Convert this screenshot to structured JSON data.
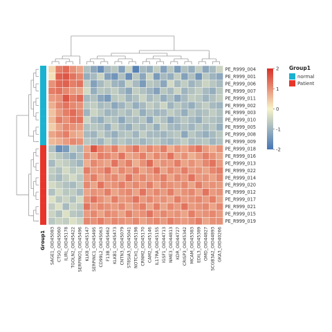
{
  "chart_data": {
    "type": "heatmap",
    "rows": [
      "PE_R999_004",
      "PE_R999_001",
      "PE_R999_006",
      "PE_R999_007",
      "PE_R999_011",
      "PE_R999_002",
      "PE_R999_003",
      "PE_R999_010",
      "PE_R999_005",
      "PE_R999_008",
      "PE_R999_009",
      "PE_R999_018",
      "PE_R999_016",
      "PE_R999_013",
      "PE_R999_022",
      "PE_R999_014",
      "PE_R999_020",
      "PE_R999_012",
      "PE_R999_017",
      "PE_R999_021",
      "PE_R999_015",
      "PE_R999_019"
    ],
    "columns": [
      "SAGE1_OID45083",
      "CTSO_OID45060",
      "ILIRL_OID45178",
      "TGOLN2_OID45422",
      "SERPINO1_OID45496",
      "KLK8_OID45147",
      "SERPINC1_OID45495",
      "CD99L2_OID45063",
      "F13B_OID45462",
      "KLKB1_OID45473",
      "CNTN3_OID45079",
      "ST8SIA3_OID45041",
      "NOTCH1_OID45198",
      "CRNM2_OID45170",
      "CAM2_OID45146",
      "IL17RA_OID45155",
      "IGSF1_OID44713",
      "NME3_OID44813",
      "KDR_OID44727",
      "CRISP3_OID45342",
      "MCAM_OID45383",
      "EDIL3_OID45389",
      "OMD_OID44827",
      "SCGB3A2_OID44893",
      "GKA3_OID40266"
    ],
    "groups": [
      "normal",
      "normal",
      "normal",
      "normal",
      "normal",
      "normal",
      "normal",
      "normal",
      "normal",
      "normal",
      "normal",
      "Patient",
      "Patient",
      "Patient",
      "Patient",
      "Patient",
      "Patient",
      "Patient",
      "Patient",
      "Patient",
      "Patient",
      "Patient"
    ],
    "values": [
      [
        0.3,
        1.2,
        1.4,
        1.0,
        0.8,
        -0.8,
        -1.2,
        -1.6,
        -0.9,
        -0.7,
        -1.3,
        -0.5,
        -1.8,
        -0.9,
        -1.1,
        -0.6,
        -1.3,
        -0.7,
        -1.4,
        -0.8,
        -1.1,
        -0.6,
        -1.2,
        -0.9,
        -0.5
      ],
      [
        0.2,
        1.5,
        1.6,
        1.3,
        1.1,
        -1.1,
        -0.9,
        -0.5,
        -1.3,
        -1.5,
        -0.8,
        -1.6,
        -0.7,
        -1.2,
        -0.5,
        -1.4,
        -0.9,
        -1.1,
        -0.6,
        -1.3,
        -0.8,
        -1.5,
        -0.7,
        -1.0,
        -1.2
      ],
      [
        1.0,
        1.4,
        1.5,
        1.2,
        1.3,
        -0.6,
        -1.3,
        -0.9,
        -0.6,
        -1.0,
        -1.1,
        -0.5,
        -0.9,
        -1.4,
        -0.7,
        -0.8,
        -1.2,
        -0.4,
        -0.9,
        -0.6,
        -1.0,
        -0.8,
        -0.5,
        -0.7,
        -0.9
      ],
      [
        1.2,
        1.3,
        1.1,
        0.9,
        0.8,
        -0.4,
        -1.1,
        -0.7,
        -0.8,
        -0.6,
        -0.9,
        -1.2,
        -0.6,
        -0.8,
        -1.0,
        -1.3,
        -0.7,
        -0.9,
        -0.5,
        -1.0,
        -0.8,
        -0.6,
        -0.9,
        -1.1,
        -0.7
      ],
      [
        0.9,
        1.0,
        1.6,
        1.2,
        1.4,
        -0.9,
        -0.8,
        -1.2,
        -1.4,
        -0.7,
        -0.6,
        -1.0,
        -0.8,
        -0.5,
        -0.9,
        -0.7,
        -1.1,
        -0.8,
        -1.2,
        -0.9,
        -0.6,
        -0.7,
        -1.0,
        -0.8,
        -0.6
      ],
      [
        0.7,
        1.1,
        1.3,
        1.1,
        1.0,
        -0.7,
        -0.6,
        -0.9,
        -0.8,
        -1.2,
        -1.0,
        -0.7,
        -1.1,
        -0.9,
        -0.6,
        -0.8,
        -0.5,
        -1.0,
        -0.7,
        -0.9,
        -1.1,
        -0.8,
        -0.6,
        -0.9,
        -1.0
      ],
      [
        0.5,
        0.9,
        1.2,
        1.4,
        1.1,
        -1.0,
        -0.5,
        -0.7,
        -1.0,
        -0.9,
        -0.7,
        -0.9,
        -0.6,
        -1.1,
        -0.8,
        -1.0,
        -0.9,
        -0.6,
        -0.8,
        -1.1,
        -0.7,
        -0.9,
        -0.8,
        -0.6,
        -0.8
      ],
      [
        0.6,
        1.2,
        1.0,
        1.3,
        1.3,
        -0.5,
        -0.9,
        -1.1,
        -0.7,
        -0.8,
        -1.2,
        -0.8,
        -0.9,
        -0.7,
        -1.2,
        -0.6,
        -0.8,
        -1.2,
        -0.9,
        -0.7,
        -0.9,
        -1.1,
        -0.7,
        -0.8,
        -0.9
      ],
      [
        0.4,
        0.8,
        1.1,
        1.0,
        0.9,
        -0.8,
        -0.7,
        -0.8,
        -1.1,
        -0.6,
        -0.9,
        -1.1,
        -0.7,
        -0.9,
        -0.7,
        -1.1,
        -0.6,
        -0.9,
        -1.0,
        -0.8,
        -1.0,
        -0.7,
        -0.9,
        -0.7,
        -1.1
      ],
      [
        0.8,
        1.0,
        1.2,
        0.8,
        0.7,
        -0.9,
        -1.0,
        -0.6,
        -0.9,
        -1.1,
        -0.8,
        -0.7,
        -1.0,
        -0.6,
        -0.9,
        -0.9,
        -1.0,
        -0.8,
        -0.7,
        -1.2,
        -0.7,
        -0.9,
        -1.1,
        -0.9,
        -0.7
      ],
      [
        0.6,
        0.7,
        0.9,
        1.1,
        1.0,
        -0.7,
        -0.8,
        -1.0,
        -0.6,
        -0.9,
        -0.7,
        -0.9,
        -0.8,
        -1.0,
        -0.8,
        -0.7,
        -0.9,
        -1.0,
        -0.8,
        -0.6,
        -0.9,
        -0.8,
        -0.7,
        -1.0,
        -0.8
      ],
      [
        -0.8,
        -1.6,
        -1.4,
        -0.6,
        -0.9,
        0.8,
        1.6,
        1.1,
        0.9,
        1.2,
        0.7,
        1.0,
        1.3,
        0.8,
        1.1,
        0.9,
        1.2,
        0.7,
        1.0,
        0.8,
        1.1,
        1.3,
        0.9,
        0.7,
        1.0
      ],
      [
        -0.5,
        -0.7,
        -0.9,
        -1.1,
        -0.8,
        1.0,
        0.8,
        1.2,
        1.1,
        0.9,
        1.3,
        0.8,
        0.9,
        1.2,
        0.8,
        1.1,
        0.9,
        1.3,
        0.8,
        1.0,
        0.7,
        0.9,
        1.2,
        1.0,
        0.8
      ],
      [
        -0.9,
        -0.5,
        -0.6,
        -0.8,
        -1.0,
        0.7,
        1.1,
        0.9,
        0.8,
        1.3,
        0.9,
        1.2,
        0.7,
        1.0,
        1.4,
        0.8,
        1.0,
        0.9,
        1.2,
        0.8,
        1.0,
        0.8,
        1.1,
        1.3,
        0.9
      ],
      [
        -0.6,
        -0.8,
        -0.4,
        -0.7,
        -0.5,
        1.2,
        0.9,
        1.0,
        1.3,
        0.8,
        1.1,
        0.9,
        1.2,
        0.8,
        1.0,
        1.3,
        0.8,
        1.1,
        0.9,
        1.2,
        0.9,
        1.0,
        0.8,
        1.1,
        1.2
      ],
      [
        -0.7,
        -0.9,
        -0.6,
        -0.4,
        -0.7,
        0.9,
        1.2,
        0.8,
        1.0,
        1.1,
        0.8,
        1.3,
        0.9,
        1.1,
        0.9,
        1.0,
        1.2,
        0.8,
        1.1,
        0.9,
        1.3,
        0.9,
        1.0,
        0.8,
        1.1
      ],
      [
        -0.4,
        -0.6,
        -0.8,
        -0.9,
        -0.6,
        1.1,
        0.8,
        1.3,
        0.9,
        1.0,
        1.2,
        0.9,
        1.1,
        0.9,
        1.2,
        0.8,
        1.1,
        1.0,
        0.9,
        1.1,
        0.8,
        1.2,
        0.9,
        1.0,
        0.9
      ],
      [
        -0.8,
        -0.4,
        -0.7,
        -0.6,
        -0.9,
        0.8,
        1.0,
        0.9,
        1.2,
        0.8,
        1.0,
        1.1,
        0.8,
        1.3,
        0.9,
        1.1,
        0.9,
        1.2,
        0.8,
        1.0,
        1.1,
        0.8,
        1.3,
        0.9,
        1.0
      ],
      [
        -0.3,
        -0.7,
        -0.5,
        -0.8,
        -0.4,
        1.0,
        1.3,
        1.0,
        0.8,
        1.2,
        0.9,
        1.0,
        1.3,
        0.9,
        1.1,
        0.9,
        1.0,
        0.8,
        1.2,
        0.9,
        1.0,
        1.1,
        0.9,
        1.2,
        0.8
      ],
      [
        -0.6,
        -0.3,
        -0.9,
        -0.5,
        -0.7,
        1.3,
        0.9,
        1.1,
        1.0,
        0.9,
        1.1,
        0.8,
        1.0,
        1.2,
        0.8,
        1.2,
        0.8,
        1.1,
        0.9,
        1.3,
        0.9,
        1.0,
        1.1,
        0.8,
        1.1
      ],
      [
        -0.5,
        -0.8,
        -0.3,
        -0.7,
        -0.8,
        0.9,
        1.1,
        0.8,
        1.1,
        1.0,
        0.8,
        1.2,
        0.9,
        1.0,
        1.3,
        0.9,
        1.1,
        0.9,
        1.0,
        0.8,
        1.2,
        0.9,
        1.0,
        1.1,
        0.9
      ],
      [
        -0.7,
        -0.5,
        -0.6,
        -0.3,
        -0.5,
        1.1,
        1.0,
        1.2,
        0.9,
        1.1,
        1.0,
        0.9,
        1.1,
        0.8,
        1.0,
        1.1,
        0.9,
        1.2,
        1.0,
        0.9,
        1.0,
        1.2,
        0.8,
        1.0,
        1.0
      ]
    ],
    "scale": {
      "min": -2,
      "max": 2,
      "ticks": [
        2,
        1,
        0,
        -1,
        -2
      ],
      "colors": {
        "low": "#4575b4",
        "mid": "#f7f3c8",
        "high": "#d73027"
      }
    },
    "legend": {
      "title": "Group1",
      "entries": [
        {
          "label": "normal",
          "color": "#1ab2d0"
        },
        {
          "label": "Patient",
          "color": "#e8352a"
        }
      ]
    },
    "annotation_label": "Group1"
  }
}
